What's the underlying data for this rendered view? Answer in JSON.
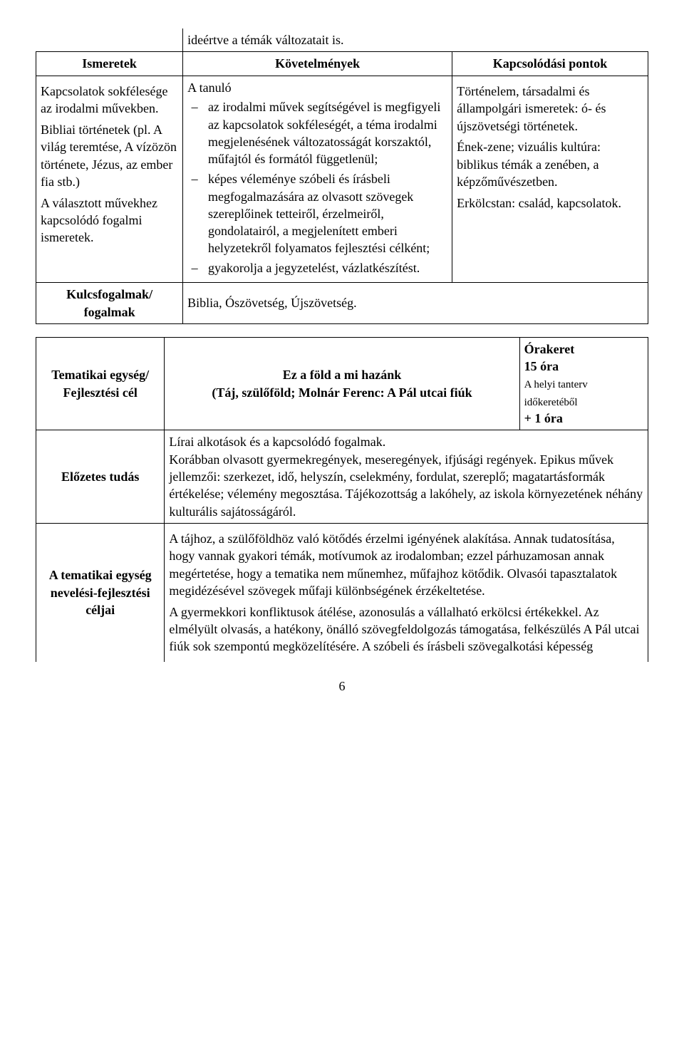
{
  "table1": {
    "note_row": "ideértve a témák változatait is.",
    "headers": [
      "Ismeretek",
      "Követelmények",
      "Kapcsolódási pontok"
    ],
    "col1": {
      "p1": "Kapcsolatok sokfélesége az irodalmi művekben.",
      "p2": "Bibliai történetek (pl. A világ teremtése, A vízözön története, Jézus, az ember fia stb.)",
      "p3": "A választott művekhez kapcsolódó fogalmi ismeretek."
    },
    "col2": {
      "lead": "A tanuló",
      "b1": "az irodalmi művek segítségével is megfigyeli az kapcsolatok sokféleségét, a téma irodalmi megjelenésének változatosságát korszaktól, műfajtól és formától függetlenül;",
      "b2": "képes véleménye szóbeli és írásbeli megfogalmazására az olvasott szövegek szereplőinek tetteiről, érzelmeiről, gondolatairól, a megjelenített emberi helyzetekről folyamatos fejlesztési célként;",
      "b3": "gyakorolja a jegyzetelést, vázlatkészítést."
    },
    "col3": {
      "p1": "Történelem, társadalmi és állampolgári ismeretek: ó- és újszövetségi történetek.",
      "p2": "Ének-zene; vizuális kultúra: biblikus témák a zenében, a képzőművészetben.",
      "p3": "Erkölcstan: család, kapcsolatok."
    },
    "kulcs_label": "Kulcsfogalmak/\nfogalmak",
    "kulcs_value": "Biblia, Ószövetség, Újszövetség."
  },
  "table2": {
    "r1c1a": "Tematikai egység/",
    "r1c1b": "Fejlesztési cél",
    "r1c2a": "Ez a föld a mi hazánk",
    "r1c2b": "(Táj, szülőföld; Molnár Ferenc: A Pál utcai fiúk",
    "r1c3a": "Órakeret",
    "r1c3b": "15 óra",
    "r1c3c": "A helyi tanterv időkeretéből",
    "r1c3d": "+ 1 óra",
    "r2c1": "Előzetes tudás",
    "r2c2": "Lírai alkotások és a kapcsolódó fogalmak.\nKorábban olvasott gyermekregények, meseregények, ifjúsági regények. Epikus művek jellemzői: szerkezet, idő, helyszín, cselekmény, fordulat, szereplő; magatartásformák értékelése; vélemény megosztása. Tájékozottság a lakóhely, az iskola környezetének néhány kulturális sajátosságáról.",
    "r3c1": "A tematikai egység nevelési-fejlesztési céljai",
    "r3c2a": "A tájhoz, a szülőföldhöz való kötődés érzelmi igényének alakítása. Annak tudatosítása, hogy vannak gyakori témák, motívumok az irodalomban; ezzel párhuzamosan annak megértetése, hogy a tematika nem műnemhez, műfajhoz kötődik. Olvasói tapasztalatok megidézésével szövegek műfaji különbségének érzékeltetése.",
    "r3c2b": "A gyermekkori konfliktusok átélése, azonosulás a vállalható erkölcsi értékekkel. Az elmélyült olvasás, a hatékony, önálló szövegfeldolgozás támogatása, felkészülés A Pál utcai fiúk sok szempontú megközelítésére. A szóbeli és írásbeli szövegalkotási képesség"
  },
  "page_number": "6"
}
